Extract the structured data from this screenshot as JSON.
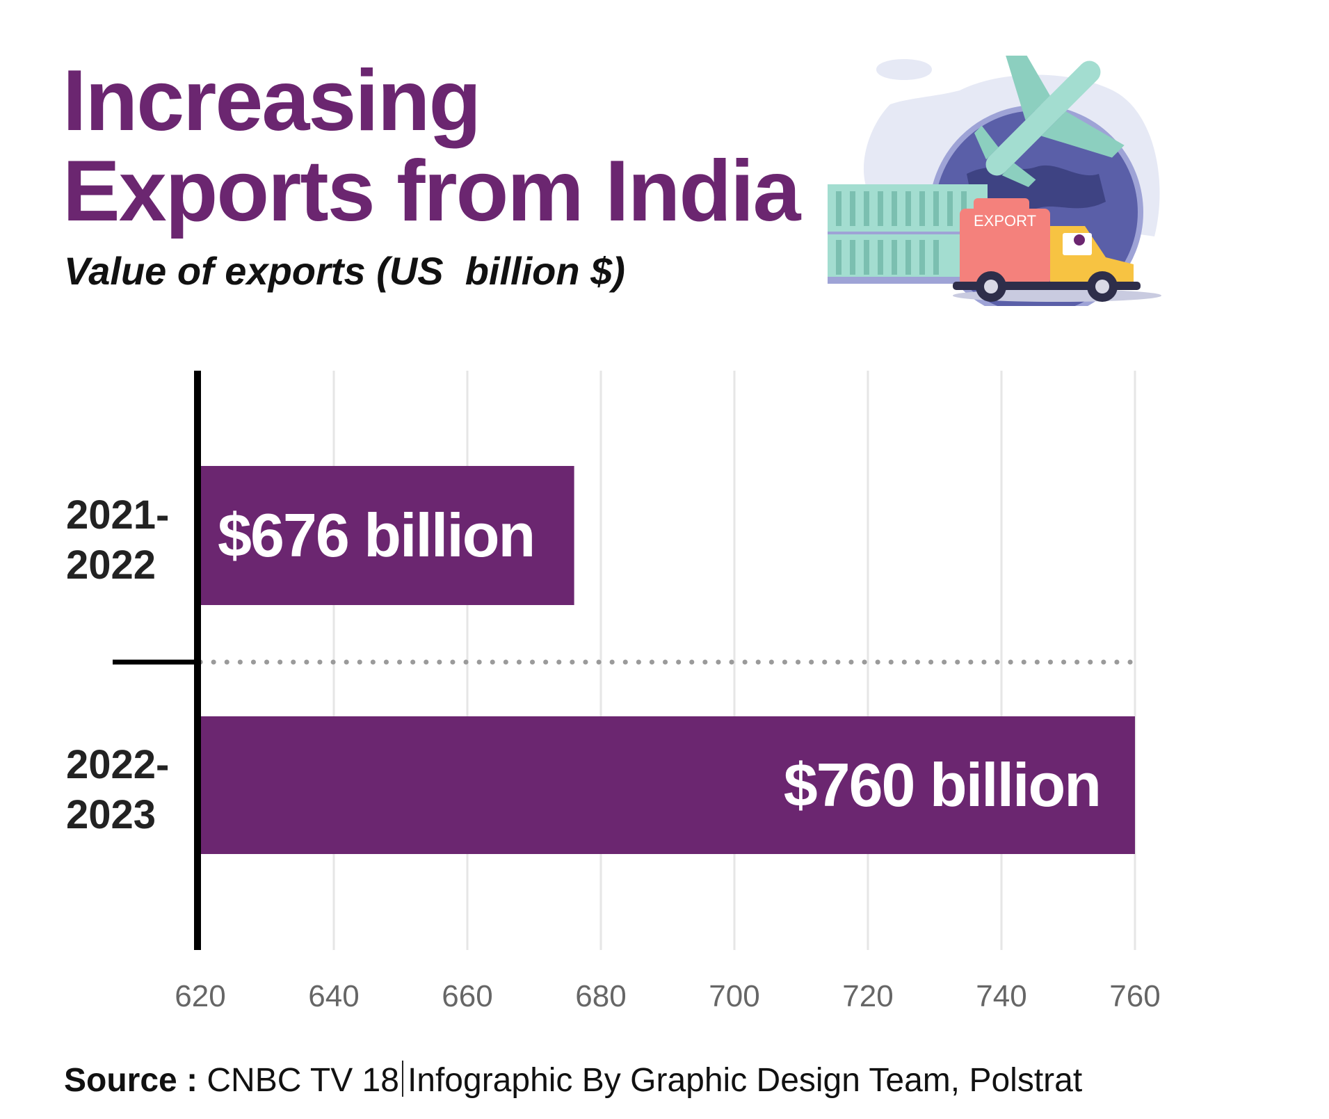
{
  "header": {
    "title_line1": "Increasing",
    "title_line2": "Exports from India",
    "subtitle": "Value of exports (US  billion $)"
  },
  "illustration": {
    "truck_label": "EXPORT",
    "icons": [
      "globe-icon",
      "airplane-icon",
      "shipping-container-icon",
      "truck-icon"
    ]
  },
  "colors": {
    "bar": "#6b2670",
    "title": "#6b2670",
    "grid": "#e6e6e6",
    "axis": "#000000",
    "tick": "#666666"
  },
  "chart_data": {
    "type": "bar",
    "orientation": "horizontal",
    "categories": [
      "2021-2022",
      "2022-2023"
    ],
    "category_lines": [
      [
        "2021-",
        "2022"
      ],
      [
        "2022-",
        "2023"
      ]
    ],
    "values": [
      676,
      760
    ],
    "data_labels": [
      "$676 billion",
      "$760 billion"
    ],
    "xlim": [
      620,
      760
    ],
    "xticks": [
      620,
      640,
      660,
      680,
      700,
      720,
      740,
      760
    ],
    "grid": true
  },
  "footer": {
    "source_label": "Source : ",
    "source_value": "CNBC TV 18",
    "credit": "Infographic By Graphic Design Team, Polstrat"
  }
}
